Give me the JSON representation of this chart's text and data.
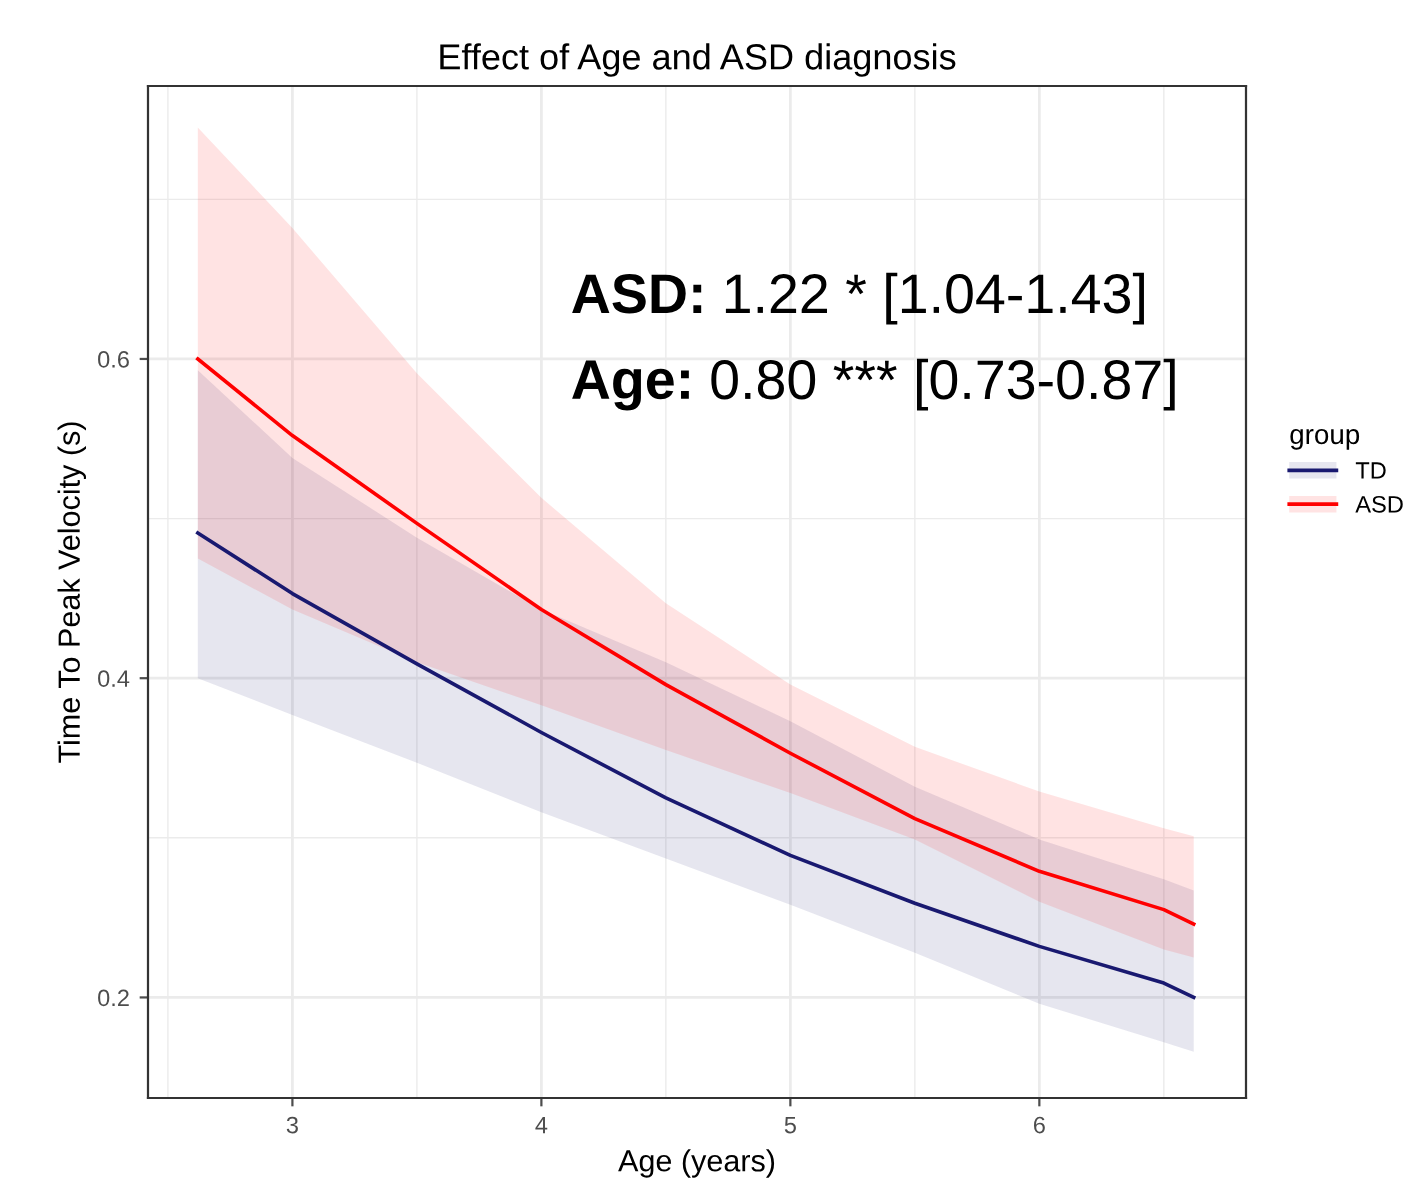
{
  "chart_data": {
    "type": "line",
    "title": "Effect of Age and ASD diagnosis",
    "xlabel": "Age (years)",
    "ylabel": "Time To Peak Velocity (s)",
    "legend_title": "group",
    "x": [
      2.62,
      3,
      3.5,
      4,
      4.5,
      5,
      5.5,
      6,
      6.5,
      6.62
    ],
    "series": [
      {
        "name": "TD",
        "color": "#191970",
        "values": [
          0.491,
          0.453,
          0.409,
          0.366,
          0.325,
          0.289,
          0.259,
          0.232,
          0.209,
          0.2
        ],
        "lower": [
          0.4,
          0.377,
          0.347,
          0.316,
          0.287,
          0.258,
          0.228,
          0.196,
          0.172,
          0.166
        ],
        "upper": [
          0.593,
          0.538,
          0.488,
          0.443,
          0.41,
          0.373,
          0.332,
          0.299,
          0.274,
          0.267
        ]
      },
      {
        "name": "ASD",
        "color": "#ff0000",
        "values": [
          0.6,
          0.552,
          0.497,
          0.443,
          0.396,
          0.353,
          0.312,
          0.279,
          0.255,
          0.246
        ],
        "lower": [
          0.475,
          0.443,
          0.41,
          0.383,
          0.355,
          0.328,
          0.299,
          0.26,
          0.23,
          0.225
        ],
        "upper": [
          0.745,
          0.682,
          0.591,
          0.513,
          0.447,
          0.396,
          0.357,
          0.329,
          0.306,
          0.301
        ]
      }
    ],
    "annotations": [
      "ASD: 1.22 * [1.04-1.43]",
      "Age: 0.80 *** [0.73-0.87]"
    ],
    "xlim": [
      2.42,
      6.83
    ],
    "ylim": [
      0.137,
      0.771
    ],
    "xticks": [
      3,
      4,
      5,
      6
    ],
    "yticks": [
      0.2,
      0.4,
      0.6
    ],
    "grid": true,
    "legend": "right",
    "marker": "none",
    "line_style": "solid"
  }
}
